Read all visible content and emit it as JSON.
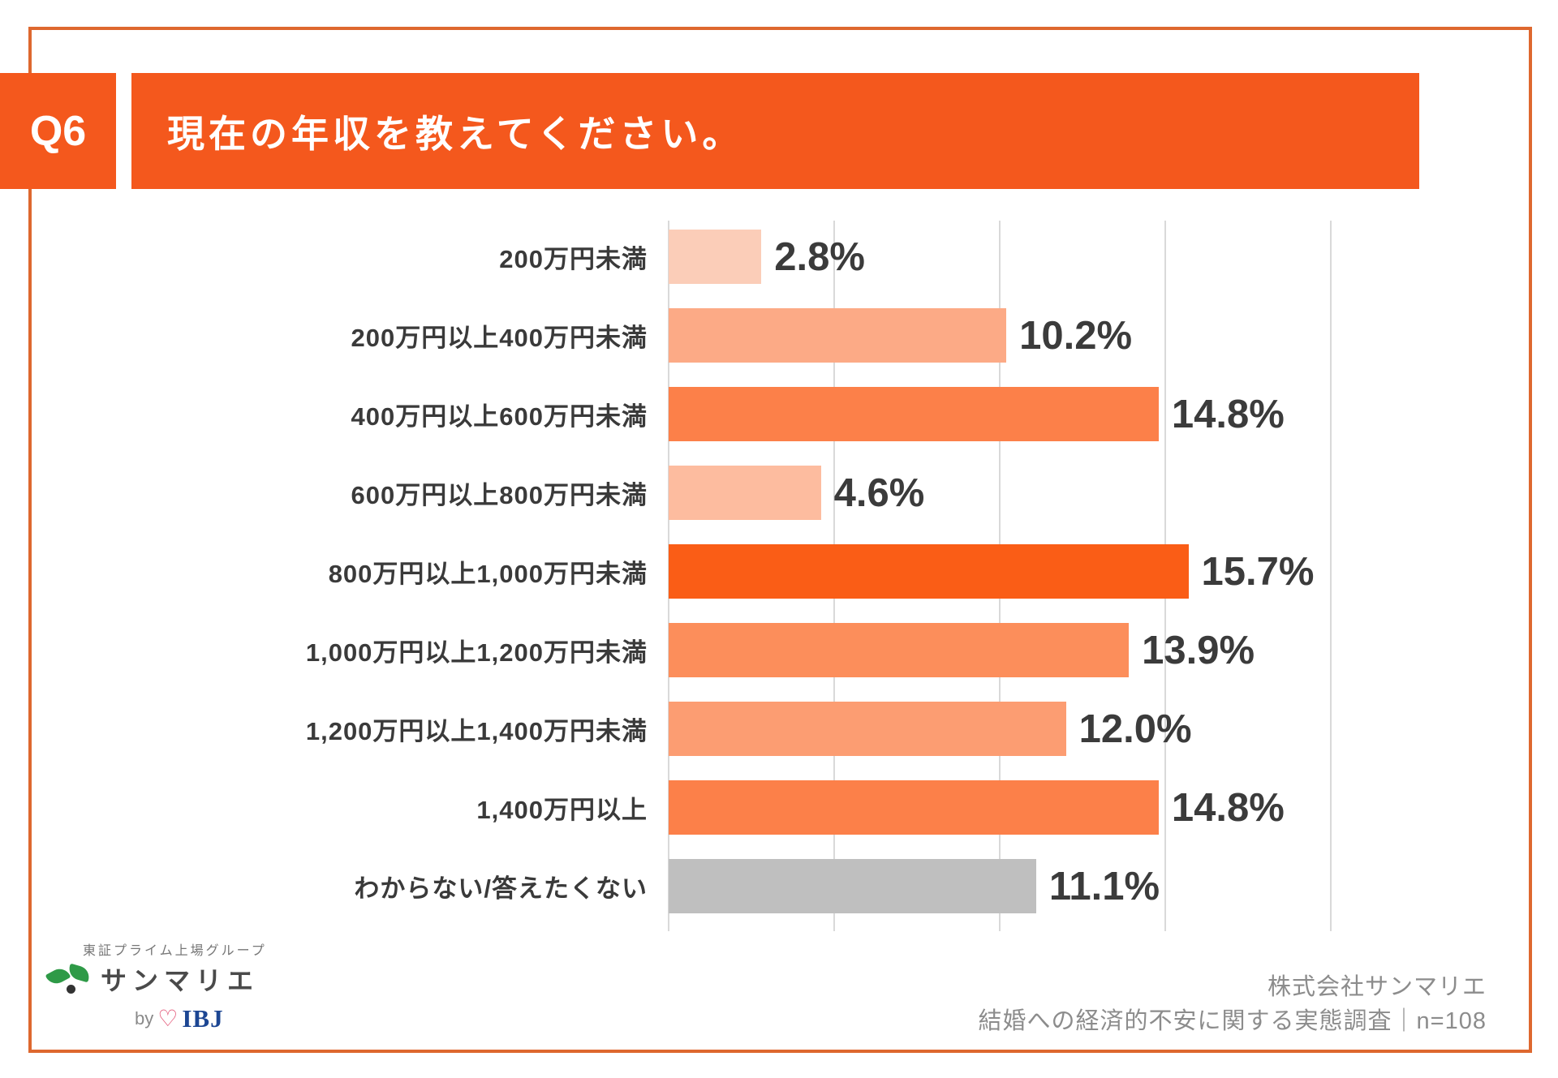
{
  "meta": {
    "question_no": "Q6",
    "title": "現在の年収を教えてください。"
  },
  "chart_data": {
    "type": "bar",
    "orientation": "horizontal",
    "title": "現在の年収を教えてください。",
    "xlabel": "",
    "ylabel": "",
    "xlim": [
      0,
      20
    ],
    "gridlines_pct": [
      0,
      5,
      10,
      15,
      20
    ],
    "grid": true,
    "legend": false,
    "categories": [
      "200万円未満",
      "200万円以上400万円未満",
      "400万円以上600万円未満",
      "600万円以上800万円未満",
      "800万円以上1,000万円未満",
      "1,000万円以上1,200万円未満",
      "1,200万円以上1,400万円未満",
      "1,400万円以上",
      "わからない/答えたくない"
    ],
    "values": [
      2.8,
      10.2,
      14.8,
      4.6,
      15.7,
      13.9,
      12.0,
      14.8,
      11.1
    ],
    "value_labels": [
      "2.8%",
      "10.2%",
      "14.8%",
      "4.6%",
      "15.7%",
      "13.9%",
      "12.0%",
      "14.8%",
      "11.1%"
    ],
    "bar_colors": [
      "#FBCDB8",
      "#FCAA86",
      "#FC8049",
      "#FDBC9F",
      "#FA5D16",
      "#FC8E5B",
      "#FC9D72",
      "#FC8049",
      "#BFBFBF"
    ]
  },
  "footer": {
    "logo": {
      "group_line": "東証プライム上場グループ",
      "brand": "サンマリエ",
      "by_word": "by",
      "heart": "♡",
      "ibj": "IBJ",
      "leaf_color": "#2E9A47",
      "heart_color": "#E14A6D",
      "ibj_color": "#1C4693"
    },
    "source_line1": "株式会社サンマリエ",
    "source_line2": "結婚への経済的不安に関する実態調査｜n=108"
  },
  "colors": {
    "accent": "#F4581D",
    "frame_border": "#DE682F",
    "gridline": "#D9D9D9",
    "category_label": "#3A3A3A",
    "value_label": "#3B3B3B"
  }
}
